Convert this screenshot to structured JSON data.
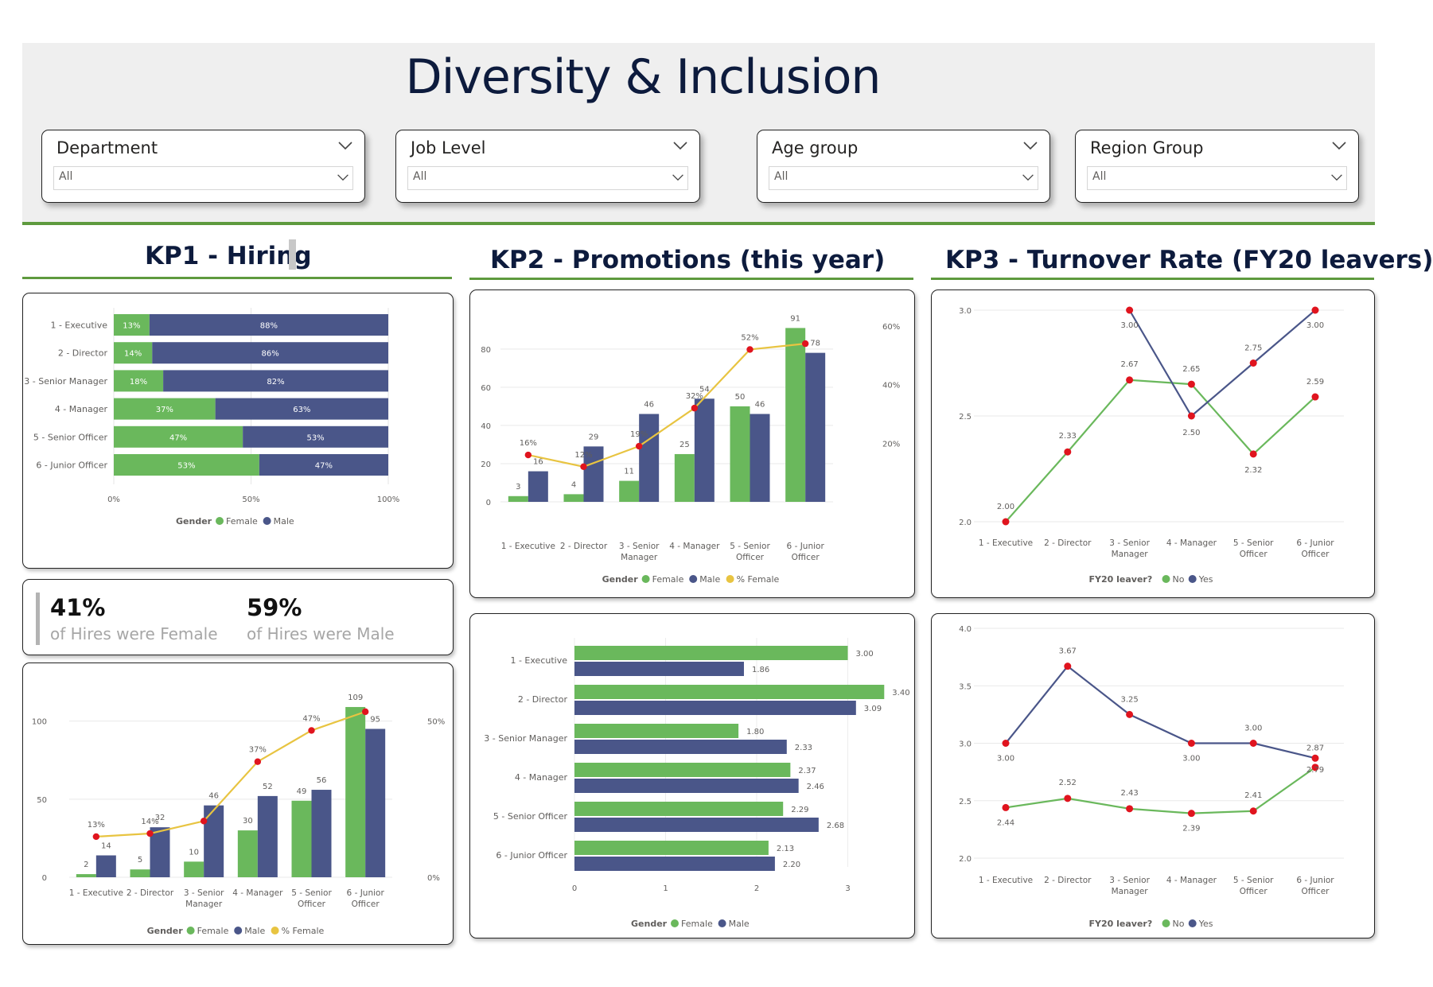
{
  "title": "Diversity & Inclusion",
  "slicers": [
    {
      "label": "Department",
      "value": "All"
    },
    {
      "label": "Job Level",
      "value": "All"
    },
    {
      "label": "Age group",
      "value": "All"
    },
    {
      "label": "Region Group",
      "value": "All"
    }
  ],
  "sections": {
    "kp1": "KP1 - Hiring",
    "kp2": "KP2 - Promotions (this year)",
    "kp3": "KP3 - Turnover Rate (FY20 leavers)"
  },
  "kpis": [
    {
      "value": "41%",
      "label": "of Hires were Female"
    },
    {
      "value": "59%",
      "label": "of Hires were Male"
    }
  ],
  "colors": {
    "female": "#6ab85c",
    "male": "#4a5689",
    "pct": "#e8c441",
    "marker": "#e0141e",
    "accent": "#5e9a3e"
  },
  "chart_data": [
    {
      "id": "hiring-share",
      "type": "bar",
      "orientation": "horizontal-stacked-100",
      "categories": [
        "1 - Executive",
        "2 - Director",
        "3 - Senior Manager",
        "4 - Manager",
        "5 - Senior Officer",
        "6 - Junior Officer"
      ],
      "series": [
        {
          "name": "Female",
          "values": [
            13,
            14,
            18,
            37,
            47,
            53
          ]
        },
        {
          "name": "Male",
          "values": [
            88,
            86,
            82,
            63,
            53,
            47
          ]
        }
      ],
      "value_labels": [
        [
          "13%",
          "14%",
          "18%",
          "37%",
          "47%",
          "53%"
        ],
        [
          "88%",
          "86%",
          "82%",
          "63%",
          "53%",
          "47%"
        ]
      ],
      "x_ticks": [
        "0%",
        "50%",
        "100%"
      ],
      "legend_title": "Gender",
      "legend": [
        "Female",
        "Male"
      ]
    },
    {
      "id": "hiring-counts",
      "type": "bar",
      "categories": [
        "1 - Executive",
        "2 - Director",
        "3 - Senior Manager",
        "4 - Manager",
        "5 - Senior Officer",
        "6 - Junior Officer"
      ],
      "series": [
        {
          "name": "Female",
          "values": [
            2,
            5,
            10,
            30,
            49,
            109
          ]
        },
        {
          "name": "Male",
          "values": [
            14,
            32,
            46,
            52,
            56,
            95
          ]
        },
        {
          "name": "% Female",
          "values": [
            13,
            14,
            18,
            37,
            47,
            53
          ],
          "axis": "right"
        }
      ],
      "pct_labels": [
        "13%",
        "14%",
        "",
        "37%",
        "47%",
        ""
      ],
      "ylim": [
        0,
        110
      ],
      "y_ticks": [
        0,
        50,
        100
      ],
      "y2lim": [
        0,
        55
      ],
      "y2_ticks": [
        "0%",
        "50%"
      ],
      "legend_title": "Gender",
      "legend": [
        "Female",
        "Male",
        "% Female"
      ]
    },
    {
      "id": "promotions-counts",
      "type": "bar",
      "categories": [
        "1 - Executive",
        "2 - Director",
        "3 - Senior Manager",
        "4 - Manager",
        "5 - Senior Officer",
        "6 - Junior Officer"
      ],
      "series": [
        {
          "name": "Female",
          "values": [
            3,
            4,
            11,
            25,
            50,
            91
          ]
        },
        {
          "name": "Male",
          "values": [
            16,
            29,
            46,
            54,
            46,
            78
          ]
        },
        {
          "name": "% Female",
          "values": [
            16,
            12,
            19,
            32,
            52,
            54
          ],
          "axis": "right"
        }
      ],
      "pct_labels": [
        "16%",
        "12%",
        "19%",
        "32%",
        "52%",
        ""
      ],
      "ylim": [
        0,
        92
      ],
      "y_ticks": [
        0,
        20,
        40,
        60,
        80
      ],
      "y2lim": [
        0,
        60
      ],
      "y2_ticks": [
        "20%",
        "40%",
        "60%"
      ],
      "legend_title": "Gender",
      "legend": [
        "Female",
        "Male",
        "% Female"
      ]
    },
    {
      "id": "promotions-avg",
      "type": "bar",
      "orientation": "horizontal",
      "categories": [
        "1 - Executive",
        "2 - Director",
        "3 - Senior Manager",
        "4 - Manager",
        "5 - Senior Officer",
        "6 - Junior Officer"
      ],
      "series": [
        {
          "name": "Female",
          "values": [
            3.0,
            3.4,
            1.8,
            2.37,
            2.29,
            2.13
          ]
        },
        {
          "name": "Male",
          "values": [
            1.86,
            3.09,
            2.33,
            2.46,
            2.68,
            2.2
          ]
        }
      ],
      "xlim": [
        0,
        3.4
      ],
      "x_ticks": [
        0,
        1,
        2,
        3
      ],
      "legend_title": "Gender",
      "legend": [
        "Female",
        "Male"
      ]
    },
    {
      "id": "turnover-1",
      "type": "line",
      "categories": [
        "1 - Executive",
        "2 - Director",
        "3 - Senior Manager",
        "4 - Manager",
        "5 - Senior Officer",
        "6 - Junior Officer"
      ],
      "series": [
        {
          "name": "No",
          "values": [
            2.0,
            2.33,
            2.67,
            2.65,
            2.32,
            2.59
          ]
        },
        {
          "name": "Yes",
          "values": [
            null,
            null,
            3.0,
            2.5,
            2.75,
            3.0
          ]
        }
      ],
      "ylim": [
        2.0,
        3.0
      ],
      "y_ticks": [
        "2.0",
        "2.5",
        "3.0"
      ],
      "legend_title": "FY20 leaver?",
      "legend": [
        "No",
        "Yes"
      ]
    },
    {
      "id": "turnover-2",
      "type": "line",
      "categories": [
        "1 - Executive",
        "2 - Director",
        "3 - Senior Manager",
        "4 - Manager",
        "5 - Senior Officer",
        "6 - Junior Officer"
      ],
      "series": [
        {
          "name": "No",
          "values": [
            2.44,
            2.52,
            2.43,
            2.39,
            2.41,
            2.79
          ]
        },
        {
          "name": "Yes",
          "values": [
            3.0,
            3.67,
            3.25,
            3.0,
            3.0,
            2.87
          ]
        }
      ],
      "ylim": [
        2.0,
        4.0
      ],
      "y_ticks": [
        "2.0",
        "2.5",
        "3.0",
        "3.5",
        "4.0"
      ],
      "legend_title": "FY20 leaver?",
      "legend": [
        "No",
        "Yes"
      ]
    }
  ]
}
